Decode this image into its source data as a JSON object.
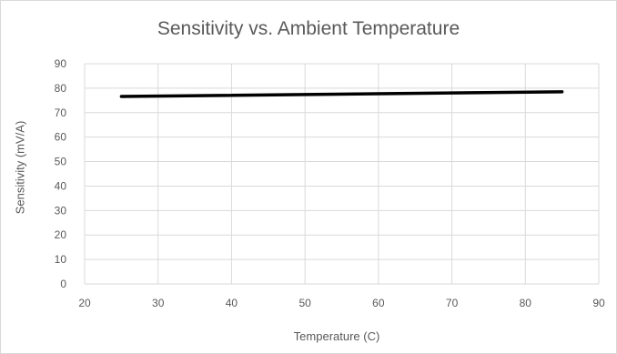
{
  "chart_data": {
    "type": "line",
    "title": "Sensitivity vs. Ambient Temperature",
    "xlabel": "Temperature (C)",
    "ylabel": "Sensitivity (mV/A)",
    "xlim": [
      20,
      90
    ],
    "ylim": [
      0,
      90
    ],
    "x_ticks": [
      20,
      30,
      40,
      50,
      60,
      70,
      80,
      90
    ],
    "y_ticks": [
      0,
      10,
      20,
      30,
      40,
      50,
      60,
      70,
      80,
      90
    ],
    "grid": true,
    "legend": "none",
    "series": [
      {
        "color": "#000000",
        "x": [
          25,
          85
        ],
        "y": [
          76.6,
          78.5
        ]
      }
    ]
  }
}
